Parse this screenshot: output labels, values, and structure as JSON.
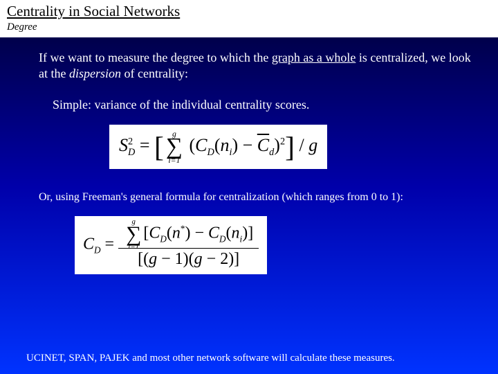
{
  "header": {
    "title": "Centrality in Social Networks",
    "subtitle": "Degree"
  },
  "body": {
    "intro_pre": "If we want to measure the degree to which the ",
    "intro_ul": "graph as a whole",
    "intro_mid": " is centralized, we look at the ",
    "intro_it": "dispersion",
    "intro_post": " of centrality:",
    "simple_line": "Simple: variance of the individual centrality scores.",
    "freeman_line": "Or, using Freeman's general formula for centralization (which ranges from 0 to 1):"
  },
  "formula1": {
    "lhs_base": "S",
    "lhs_sub": "D",
    "lhs_sup": "2",
    "sum_top": "g",
    "sum_bot": "i=1",
    "cd": "C",
    "cd_sub": "D",
    "n": "n",
    "n_sub": "i",
    "cbar": "C",
    "cbar_sub": "d",
    "exp": "2",
    "div": "g"
  },
  "formula2": {
    "lhs": "C",
    "lhs_sub": "D",
    "sum_top": "g",
    "sum_bot": "i=1",
    "cd": "C",
    "cd_sub": "D",
    "nstar": "n",
    "star": "*",
    "n": "n",
    "n_sub": "i",
    "den_a": "g",
    "den_b": "1",
    "den_c": "g",
    "den_d": "2"
  },
  "footer": {
    "text": "UCINET, SPAN, PAJEK and most other network software will calculate these measures."
  },
  "style": {
    "bg_top": "#000033",
    "bg_mid": "#0000aa",
    "bg_bot": "#0033ff",
    "text_color": "#ffffff",
    "formula_bg": "#ffffff",
    "formula_color": "#000000",
    "title_fontsize": 21,
    "body_fontsize": 18,
    "footer_fontsize": 15
  }
}
